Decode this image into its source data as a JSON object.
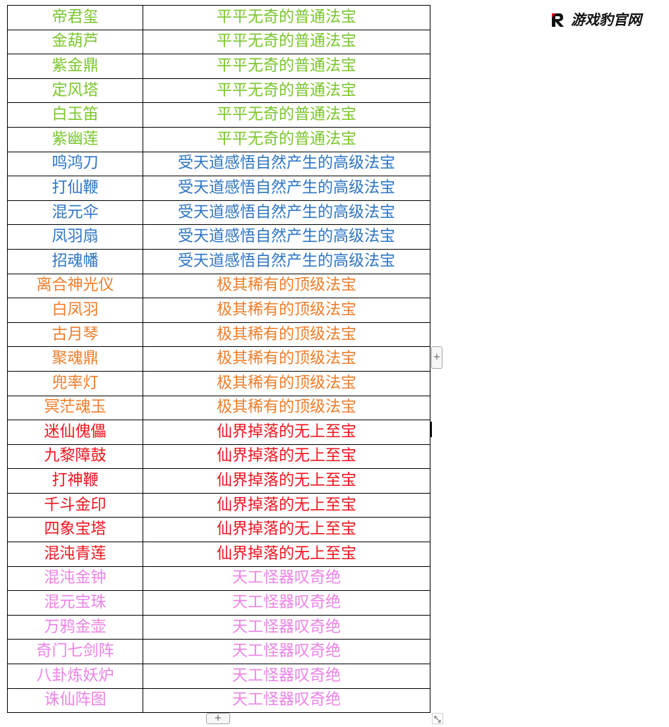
{
  "watermark": {
    "text": "游戏豹官网",
    "logo_color": "#d6001c"
  },
  "tier_colors": {
    "green": "#7ac62c",
    "blue": "#2e75c4",
    "orange": "#ef7d2a",
    "red": "#f0141e",
    "pink": "#ec83e6"
  },
  "rows": [
    {
      "name": "帝君玺",
      "desc": "平平无奇的普通法宝",
      "color": "#7ac62c"
    },
    {
      "name": "金葫芦",
      "desc": "平平无奇的普通法宝",
      "color": "#7ac62c"
    },
    {
      "name": "紫金鼎",
      "desc": "平平无奇的普通法宝",
      "color": "#7ac62c"
    },
    {
      "name": "定风塔",
      "desc": "平平无奇的普通法宝",
      "color": "#7ac62c"
    },
    {
      "name": "白玉笛",
      "desc": "平平无奇的普通法宝",
      "color": "#7ac62c"
    },
    {
      "name": "紫幽莲",
      "desc": "平平无奇的普通法宝",
      "color": "#7ac62c"
    },
    {
      "name": "鸣鸿刀",
      "desc": "受天道感悟自然产生的高级法宝",
      "color": "#2e75c4"
    },
    {
      "name": "打仙鞭",
      "desc": "受天道感悟自然产生的高级法宝",
      "color": "#2e75c4"
    },
    {
      "name": "混元伞",
      "desc": "受天道感悟自然产生的高级法宝",
      "color": "#2e75c4"
    },
    {
      "name": "凤羽扇",
      "desc": "受天道感悟自然产生的高级法宝",
      "color": "#2e75c4"
    },
    {
      "name": "招魂幡",
      "desc": "受天道感悟自然产生的高级法宝",
      "color": "#2e75c4"
    },
    {
      "name": "离合神光仪",
      "desc": "极其稀有的顶级法宝",
      "color": "#ef7d2a"
    },
    {
      "name": "白凤羽",
      "desc": "极其稀有的顶级法宝",
      "color": "#ef7d2a"
    },
    {
      "name": "古月琴",
      "desc": "极其稀有的顶级法宝",
      "color": "#ef7d2a"
    },
    {
      "name": "聚魂鼎",
      "desc": "极其稀有的顶级法宝",
      "color": "#ef7d2a"
    },
    {
      "name": "兜率灯",
      "desc": "极其稀有的顶级法宝",
      "color": "#ef7d2a"
    },
    {
      "name": "冥茫魂玉",
      "desc": "极其稀有的顶级法宝",
      "color": "#ef7d2a"
    },
    {
      "name": "迷仙傀儡",
      "desc": "仙界掉落的无上至宝",
      "color": "#f0141e"
    },
    {
      "name": "九黎障鼓",
      "desc": "仙界掉落的无上至宝",
      "color": "#f0141e"
    },
    {
      "name": "打神鞭",
      "desc": "仙界掉落的无上至宝",
      "color": "#f0141e"
    },
    {
      "name": "千斗金印",
      "desc": "仙界掉落的无上至宝",
      "color": "#f0141e"
    },
    {
      "name": "四象宝塔",
      "desc": "仙界掉落的无上至宝",
      "color": "#f0141e"
    },
    {
      "name": "混沌青莲",
      "desc": "仙界掉落的无上至宝",
      "color": "#f0141e"
    },
    {
      "name": "混沌金钟",
      "desc": "天工怪器叹奇绝",
      "color": "#ec83e6"
    },
    {
      "name": "混元宝珠",
      "desc": "天工怪器叹奇绝",
      "color": "#ec83e6"
    },
    {
      "name": "万鸦金壶",
      "desc": "天工怪器叹奇绝",
      "color": "#ec83e6"
    },
    {
      "name": "奇门七剑阵",
      "desc": "天工怪器叹奇绝",
      "color": "#ec83e6"
    },
    {
      "name": "八卦炼妖炉",
      "desc": "天工怪器叹奇绝",
      "color": "#ec83e6"
    },
    {
      "name": "诛仙阵图",
      "desc": "天工怪器叹奇绝",
      "color": "#ec83e6"
    }
  ],
  "controls": {
    "add_column_label": "+",
    "add_row_label": "+",
    "add_column_icon": "plus-icon",
    "add_row_icon": "plus-icon",
    "resize_icon": "resize-icon"
  }
}
